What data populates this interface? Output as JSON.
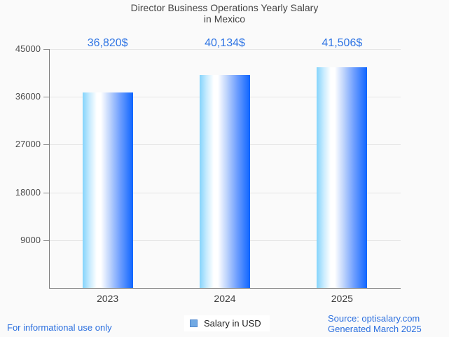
{
  "page": {
    "background": "#fafafa",
    "footer_left": "For informational use only",
    "source_line1": "Source: optisalary.com",
    "source_line2": "Generated March 2025"
  },
  "colors": {
    "accent_blue": "#2b6fdf",
    "value_label_blue": "#2e74e4",
    "title_gray": "#434343",
    "axis_label_gray": "#4c4c4c",
    "axis_line_gray": "#7f7f7f",
    "gridline_gray": "#e5e5e5",
    "bar_gradient_left": "#84d4fc",
    "bar_gradient_mid": "#ffffff",
    "bar_gradient_right": "#0e65ff",
    "legend_square_fill": "#71a9e3",
    "legend_square_border": "#4e86cc"
  },
  "legend": {
    "label": "Salary in USD"
  },
  "chart_data": {
    "type": "bar",
    "title": "Director Business Operations Yearly Salary in Mexico",
    "title_lines": [
      "Director Business Operations Yearly Salary",
      "in Mexico"
    ],
    "categories": [
      "2023",
      "2024",
      "2025"
    ],
    "series": [
      {
        "name": "Salary in USD",
        "values": [
          36820,
          40134,
          41506
        ]
      }
    ],
    "value_labels": [
      "36,820$",
      "40,134$",
      "41,506$"
    ],
    "xlabel": "",
    "ylabel": "",
    "ylim": [
      0,
      45000
    ],
    "y_ticks": [
      45000,
      36000,
      27000,
      18000,
      9000
    ],
    "grid": true,
    "legend_position": "bottom"
  }
}
